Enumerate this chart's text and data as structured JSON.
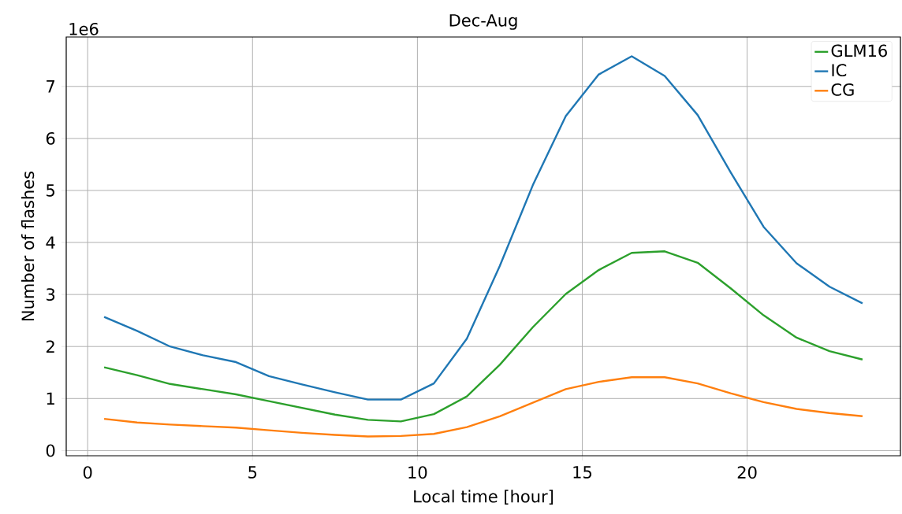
{
  "chart_data": {
    "type": "line",
    "title": "Dec-Aug",
    "xlabel": "Local time [hour]",
    "ylabel": "Number of flashes",
    "annotations": [
      "1e6"
    ],
    "x": [
      0.5,
      1.5,
      2.5,
      3.5,
      4.5,
      5.5,
      6.5,
      7.5,
      8.5,
      9.5,
      10.5,
      11.5,
      12.5,
      13.5,
      14.5,
      15.5,
      16.5,
      17.5,
      18.5,
      19.5,
      20.5,
      21.5,
      22.5,
      23.5
    ],
    "series": [
      {
        "name": "GLM16",
        "color": "#2ca02c",
        "values": [
          1.6,
          1.45,
          1.28,
          1.18,
          1.08,
          0.95,
          0.82,
          0.69,
          0.59,
          0.56,
          0.7,
          1.04,
          1.65,
          2.37,
          3.01,
          3.47,
          3.8,
          3.83,
          3.61,
          3.12,
          2.6,
          2.17,
          1.91,
          1.75
        ]
      },
      {
        "name": "IC",
        "color": "#1f77b4",
        "values": [
          2.57,
          2.3,
          2.0,
          1.83,
          1.7,
          1.43,
          1.27,
          1.12,
          0.98,
          0.98,
          1.29,
          2.15,
          3.55,
          5.1,
          6.43,
          7.23,
          7.58,
          7.2,
          6.45,
          5.35,
          4.3,
          3.6,
          3.15,
          2.83
        ]
      },
      {
        "name": "CG",
        "color": "#ff7f0e",
        "values": [
          0.61,
          0.54,
          0.5,
          0.47,
          0.44,
          0.39,
          0.34,
          0.3,
          0.27,
          0.28,
          0.32,
          0.45,
          0.66,
          0.92,
          1.18,
          1.32,
          1.41,
          1.41,
          1.29,
          1.1,
          0.93,
          0.8,
          0.72,
          0.66
        ]
      }
    ],
    "xlim": [
      -0.65,
      24.65
    ],
    "ylim": [
      -0.1,
      7.95
    ],
    "xticks": [
      0,
      5,
      10,
      15,
      20
    ],
    "yticks": [
      0,
      1,
      2,
      3,
      4,
      5,
      6,
      7
    ],
    "grid": true,
    "legend": "top right"
  }
}
